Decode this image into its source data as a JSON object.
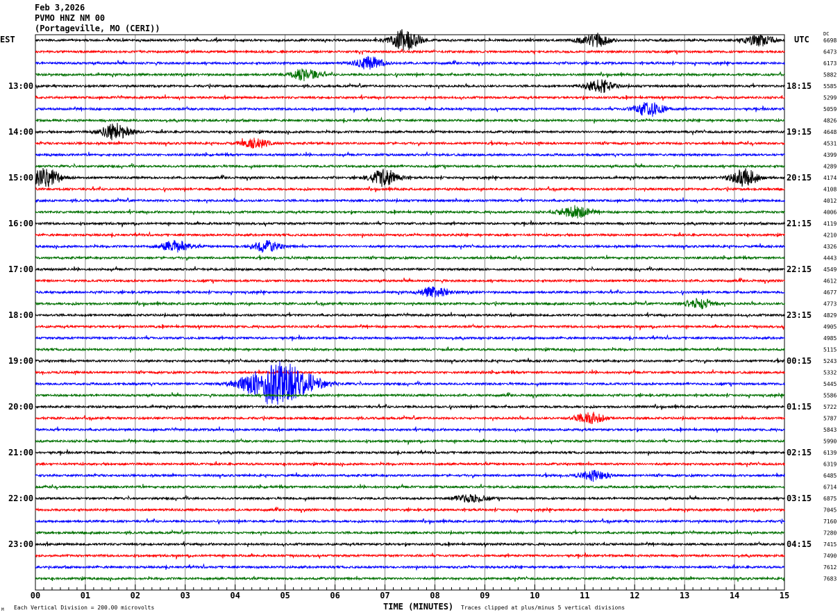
{
  "header": {
    "date": "Feb 3,2026",
    "station": "PVMO HNZ NM 00",
    "location": "(Portageville, MO (CERI))"
  },
  "chart_data": {
    "type": "line",
    "title": "PVMO HNZ NM 00",
    "left_timezone": "EST",
    "right_timezone": "UTC",
    "dc_header": "DC",
    "xlabel": "TIME (MINUTES)",
    "xlim": [
      0,
      15
    ],
    "x_ticks": [
      "00",
      "01",
      "02",
      "03",
      "04",
      "05",
      "06",
      "07",
      "08",
      "09",
      "10",
      "11",
      "12",
      "13",
      "14",
      "15"
    ],
    "left_hour_labels": [
      "13:00",
      "14:00",
      "15:00",
      "16:00",
      "17:00",
      "18:00",
      "19:00",
      "20:00",
      "21:00",
      "22:00",
      "23:00"
    ],
    "right_hour_labels": [
      "18:15",
      "19:15",
      "20:15",
      "21:15",
      "22:15",
      "23:15",
      "00:15",
      "01:15",
      "02:15",
      "03:15",
      "04:15"
    ],
    "minutes_per_line": 15,
    "trace_colors": [
      "#000000",
      "#ff0000",
      "#0000ff",
      "#007000"
    ],
    "grid": true,
    "dc_offsets": [
      6698,
      6473,
      6173,
      5882,
      5585,
      5299,
      5059,
      4826,
      4648,
      4531,
      4399,
      4289,
      4174,
      4108,
      4012,
      4006,
      4119,
      4210,
      4326,
      4443,
      4549,
      4612,
      4677,
      4773,
      4829,
      4905,
      4985,
      5115,
      5243,
      5332,
      5445,
      5586,
      5722,
      5787,
      5843,
      5990,
      6139,
      6319,
      6485,
      6714,
      6875,
      7045,
      7160,
      7280,
      7415,
      7490,
      7612,
      7683
    ],
    "events": [
      {
        "line": 0,
        "minute": 7.4,
        "amplitude": 2.2
      },
      {
        "line": 0,
        "minute": 11.2,
        "amplitude": 1.4
      },
      {
        "line": 0,
        "minute": 14.5,
        "amplitude": 1.2
      },
      {
        "line": 2,
        "minute": 6.7,
        "amplitude": 1.3
      },
      {
        "line": 3,
        "minute": 5.4,
        "amplitude": 1.2
      },
      {
        "line": 4,
        "minute": 11.3,
        "amplitude": 1.3
      },
      {
        "line": 6,
        "minute": 12.3,
        "amplitude": 1.5
      },
      {
        "line": 8,
        "minute": 1.6,
        "amplitude": 1.8
      },
      {
        "line": 9,
        "minute": 4.4,
        "amplitude": 1.0
      },
      {
        "line": 12,
        "minute": 0.2,
        "amplitude": 2.0
      },
      {
        "line": 12,
        "minute": 7.0,
        "amplitude": 1.8
      },
      {
        "line": 12,
        "minute": 14.2,
        "amplitude": 1.8
      },
      {
        "line": 15,
        "minute": 10.8,
        "amplitude": 1.3
      },
      {
        "line": 18,
        "minute": 2.8,
        "amplitude": 1.2
      },
      {
        "line": 18,
        "minute": 4.6,
        "amplitude": 1.2
      },
      {
        "line": 22,
        "minute": 8.0,
        "amplitude": 1.1
      },
      {
        "line": 23,
        "minute": 13.3,
        "amplitude": 1.1
      },
      {
        "line": 30,
        "minute": 4.9,
        "amplitude": 5.0
      },
      {
        "line": 33,
        "minute": 11.1,
        "amplitude": 1.2
      },
      {
        "line": 38,
        "minute": 11.2,
        "amplitude": 1.0
      },
      {
        "line": 40,
        "minute": 8.7,
        "amplitude": 0.9
      }
    ]
  },
  "footer": {
    "scale_note": "Each Vertical Division =  200.00 microvolts",
    "clip_note": "Traces clipped at plus/minus 5 vertical divisions",
    "corner_mark": "M"
  }
}
